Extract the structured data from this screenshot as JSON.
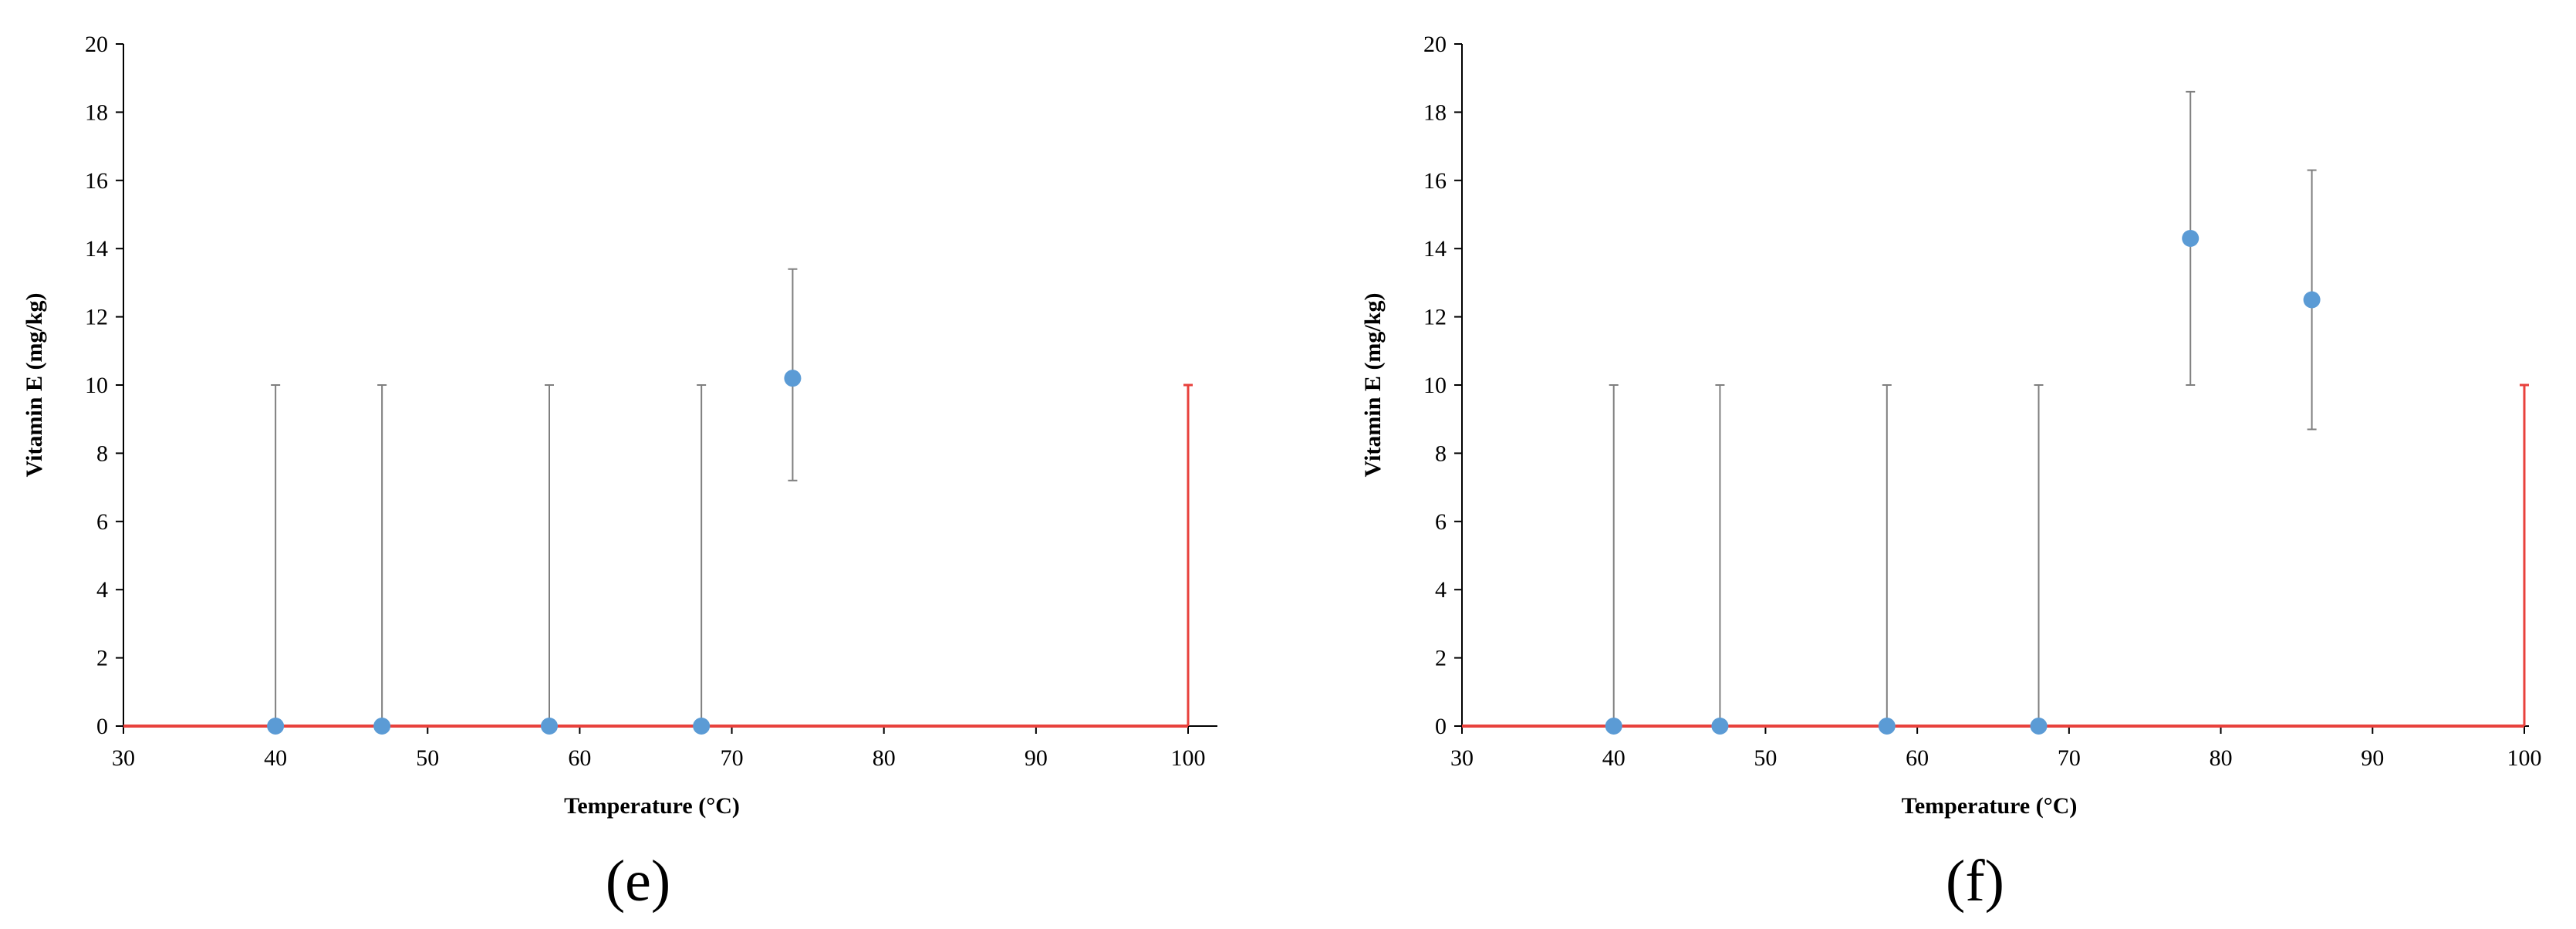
{
  "chart_data": [
    {
      "type": "scatter",
      "panel_label": "(e)",
      "xlabel": "Temperature (°C)",
      "ylabel": "Vitamin E (mg/kg)",
      "xlim": [
        30,
        100
      ],
      "ylim": [
        0,
        20
      ],
      "xticks": [
        30,
        40,
        50,
        60,
        70,
        80,
        90,
        100
      ],
      "yticks": [
        0,
        2,
        4,
        6,
        8,
        10,
        12,
        14,
        16,
        18,
        20
      ],
      "grid": false,
      "legend": "none",
      "points": [
        {
          "x": 40,
          "y": 0,
          "err_low": 0,
          "err_high": 10
        },
        {
          "x": 47,
          "y": 0,
          "err_low": 0,
          "err_high": 10
        },
        {
          "x": 58,
          "y": 0,
          "err_low": 0,
          "err_high": 10
        },
        {
          "x": 68,
          "y": 0,
          "err_low": 0,
          "err_high": 10
        },
        {
          "x": 74,
          "y": 10.2,
          "err_low": 7.2,
          "err_high": 13.4
        }
      ],
      "reference_lines": [
        {
          "orientation": "horizontal",
          "y": 0,
          "from_x": 30,
          "to_x": 100
        },
        {
          "orientation": "vertical",
          "x": 100,
          "from_y": 0,
          "to_y": 10
        }
      ],
      "colors": {
        "marker": "#5b9bd5",
        "errorbar": "#7f7f7f",
        "reference": "#e8413c",
        "axis": "#000000"
      }
    },
    {
      "type": "scatter",
      "panel_label": "(f)",
      "xlabel": "Temperature (°C)",
      "ylabel": "Vitamin E (mg/kg)",
      "xlim": [
        30,
        100
      ],
      "ylim": [
        0,
        20
      ],
      "xticks": [
        30,
        40,
        50,
        60,
        70,
        80,
        90,
        100
      ],
      "yticks": [
        0,
        2,
        4,
        6,
        8,
        10,
        12,
        14,
        16,
        18,
        20
      ],
      "grid": false,
      "legend": "none",
      "points": [
        {
          "x": 40,
          "y": 0,
          "err_low": 0,
          "err_high": 10
        },
        {
          "x": 47,
          "y": 0,
          "err_low": 0,
          "err_high": 10
        },
        {
          "x": 58,
          "y": 0,
          "err_low": 0,
          "err_high": 10
        },
        {
          "x": 68,
          "y": 0,
          "err_low": 0,
          "err_high": 10
        },
        {
          "x": 78,
          "y": 14.3,
          "err_low": 10,
          "err_high": 18.6
        },
        {
          "x": 86,
          "y": 12.5,
          "err_low": 8.7,
          "err_high": 16.3
        }
      ],
      "reference_lines": [
        {
          "orientation": "horizontal",
          "y": 0,
          "from_x": 30,
          "to_x": 100
        },
        {
          "orientation": "vertical",
          "x": 100,
          "from_y": 0,
          "to_y": 10
        }
      ],
      "colors": {
        "marker": "#5b9bd5",
        "errorbar": "#7f7f7f",
        "reference": "#e8413c",
        "axis": "#000000"
      }
    }
  ]
}
